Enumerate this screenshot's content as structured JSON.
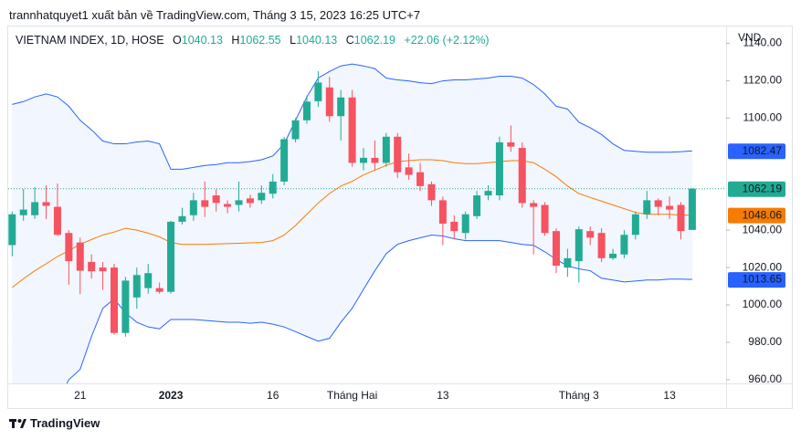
{
  "header": {
    "attribution": "trannhatquyet1 xuất bản về TradingView.com, Tháng 3 15, 2023 16:25 UTC+7"
  },
  "chart_data": {
    "type": "candlestick",
    "title": "VIETNAM INDEX, 1D, HOSE",
    "ohlc_letters": [
      "O",
      "H",
      "L",
      "C"
    ],
    "change": "+22.06",
    "change_percent": "(+2.12%)",
    "currency": "VND",
    "up_color": "#22ab94",
    "down_color": "#f7525f",
    "categories": [
      null,
      null,
      null,
      null,
      null,
      null,
      "21",
      null,
      null,
      null,
      null,
      null,
      null,
      null,
      "2023",
      null,
      null,
      null,
      null,
      null,
      null,
      null,
      null,
      "16",
      null,
      null,
      null,
      null,
      null,
      null,
      "Tháng Hai",
      null,
      null,
      null,
      null,
      null,
      null,
      null,
      "13",
      null,
      null,
      null,
      null,
      null,
      null,
      null,
      null,
      null,
      null,
      null,
      "Tháng 3",
      null,
      null,
      null,
      null,
      null,
      null,
      null,
      "13",
      null,
      null
    ],
    "open": [
      1032,
      1048,
      1048,
      1055,
      1052.5,
      1038.5,
      1033.4,
      1023,
      1020,
      1020,
      985,
      1004,
      1009,
      1009,
      1007,
      1044.5,
      1048,
      1056,
      1058.6,
      1054,
      1053.5,
      1057,
      1056,
      1059.5,
      1066,
      1088.7,
      1098.8,
      1109,
      1116.4,
      1101,
      1111,
      1076,
      1078.7,
      1076,
      1090,
      1073.6,
      1071,
      1064.6,
      1056,
      1044.5,
      1038.5,
      1047.5,
      1058.6,
      1058.6,
      1087,
      1084,
      1054.5,
      1053.5,
      1039.5,
      1020,
      1023.4,
      1039.5,
      1038.5,
      1025,
      1027,
      1037.5,
      1048.5,
      1056,
      1053,
      1053.5,
      1040.13
    ],
    "high": [
      1050,
      1062,
      1063,
      1064,
      1065,
      1040,
      1036,
      1027,
      1023,
      1022,
      1015,
      1020,
      1022,
      1012,
      1045,
      1052,
      1060,
      1066,
      1062,
      1056,
      1066,
      1059,
      1064,
      1070,
      1090,
      1100,
      1112,
      1125,
      1122,
      1115,
      1115,
      1084,
      1088,
      1092,
      1092,
      1081,
      1076,
      1066,
      1058,
      1048,
      1050,
      1061,
      1064,
      1090,
      1096,
      1087,
      1056,
      1055,
      1041,
      1030,
      1042,
      1042,
      1041,
      1030,
      1040,
      1050,
      1061,
      1057,
      1058,
      1055,
      1062.55
    ],
    "low": [
      1026,
      1045,
      1046,
      1046,
      1037,
      1010.8,
      1005.8,
      1014,
      1008,
      984,
      983,
      998,
      1006,
      1006,
      1006,
      1043,
      1045,
      1047,
      1050,
      1049,
      1050,
      1052,
      1054,
      1057,
      1064,
      1087,
      1097,
      1106,
      1098,
      1088,
      1074,
      1072,
      1072,
      1074,
      1068,
      1067,
      1061,
      1053,
      1032,
      1035,
      1035,
      1046,
      1056,
      1056,
      1082,
      1052,
      1027,
      1037,
      1017,
      1015,
      1012,
      1032,
      1023,
      1024,
      1025,
      1035,
      1046,
      1048,
      1046,
      1035,
      1040.13
    ],
    "close": [
      1048.5,
      1051,
      1055,
      1053,
      1037.5,
      1023.4,
      1018.3,
      1018,
      1018,
      985,
      1013,
      1016,
      1017,
      1007,
      1044.5,
      1047.5,
      1056,
      1052.5,
      1054.6,
      1052.5,
      1056,
      1054.5,
      1060,
      1066,
      1088.7,
      1098.8,
      1108.8,
      1119,
      1101,
      1111,
      1076,
      1078.7,
      1076,
      1090,
      1071,
      1069.6,
      1063.6,
      1056,
      1043.5,
      1039.5,
      1048.5,
      1058.6,
      1061,
      1087,
      1084.7,
      1054.5,
      1052.5,
      1038.5,
      1021,
      1025,
      1040.5,
      1036,
      1025,
      1027.4,
      1037.5,
      1048.5,
      1056,
      1052.5,
      1051,
      1039.5,
      1062.19
    ],
    "bands": [
      {
        "color": "#2962ff",
        "values": [
          1107.3,
          1108.8,
          1111.3,
          1112.9,
          1111.3,
          1106.3,
          1098.8,
          1093.7,
          1087.7,
          1086.2,
          1086.2,
          1087.2,
          1087.7,
          1086.2,
          1072.6,
          1072.6,
          1073.6,
          1074.6,
          1075.1,
          1076.1,
          1076.1,
          1076.7,
          1077.7,
          1079.7,
          1086.2,
          1098.8,
          1111.3,
          1121.4,
          1124.9,
          1127.9,
          1128.9,
          1127.9,
          1126.4,
          1121.4,
          1120.4,
          1119.9,
          1118.9,
          1118.4,
          1119.9,
          1120.4,
          1120.4,
          1120.9,
          1121.4,
          1122.4,
          1122.4,
          1121.4,
          1117.9,
          1112.9,
          1106.3,
          1104.8,
          1097.8,
          1094.8,
          1091.2,
          1086.2,
          1082.7,
          1082.2,
          1081.7,
          1081.7,
          1081.7,
          1082.0,
          1082.47
        ]
      },
      {
        "color": "#f57c00",
        "values": [
          1009.3,
          1014,
          1018.3,
          1022,
          1025.9,
          1029,
          1032.4,
          1035,
          1037.4,
          1039,
          1041,
          1040,
          1038.4,
          1036.4,
          1033.4,
          1032.4,
          1032.4,
          1032.4,
          1032.6,
          1032.8,
          1033,
          1033.2,
          1033.4,
          1034.4,
          1037.4,
          1042.5,
          1048.5,
          1054.5,
          1059.6,
          1063.6,
          1066.1,
          1069.6,
          1072.1,
          1074.6,
          1076.7,
          1077.2,
          1077.7,
          1077.7,
          1077.2,
          1076.1,
          1075.6,
          1075.6,
          1076.1,
          1076.7,
          1077.2,
          1077.2,
          1076.1,
          1072.6,
          1068.6,
          1063.6,
          1059.6,
          1057.5,
          1055.5,
          1053.5,
          1051.5,
          1049.5,
          1048.5,
          1048.5,
          1048.5,
          1048.0,
          1048.06
        ]
      },
      {
        "color": "#2962ff",
        "values": [
          925,
          930,
          935,
          941,
          948,
          960,
          965.5,
          983.1,
          998.2,
          1003.2,
          995.7,
          990.7,
          988.2,
          987.2,
          992.2,
          992.2,
          992.2,
          991.7,
          991.2,
          990.7,
          990.7,
          990.2,
          990.7,
          989.7,
          988.2,
          985.7,
          983.1,
          980.6,
          982.1,
          990.7,
          998.2,
          1008.3,
          1018.3,
          1027.4,
          1032.4,
          1034.4,
          1035.9,
          1037.4,
          1036.9,
          1035.4,
          1034.4,
          1034.4,
          1034.4,
          1034.4,
          1033.4,
          1032.4,
          1031.9,
          1028.4,
          1024.4,
          1020.8,
          1019.3,
          1018.3,
          1014.3,
          1013.3,
          1012.3,
          1012.8,
          1013.3,
          1013.3,
          1013.8,
          1013.8,
          1013.65
        ]
      }
    ],
    "band_fill": "#2962ff",
    "ylim": [
      958,
      1149
    ],
    "yticks": [
      {
        "value": 960,
        "label": "960.00"
      },
      {
        "value": 980,
        "label": "980.00"
      },
      {
        "value": 1000,
        "label": "1000.00"
      },
      {
        "value": 1020,
        "label": "1020.00"
      },
      {
        "value": 1040,
        "label": "1040.00"
      },
      {
        "value": 1100,
        "label": "1100.00"
      },
      {
        "value": 1120,
        "label": "1120.00"
      },
      {
        "value": 1140,
        "label": "1140.00"
      }
    ]
  },
  "footer": {
    "brand": "TradingView"
  }
}
